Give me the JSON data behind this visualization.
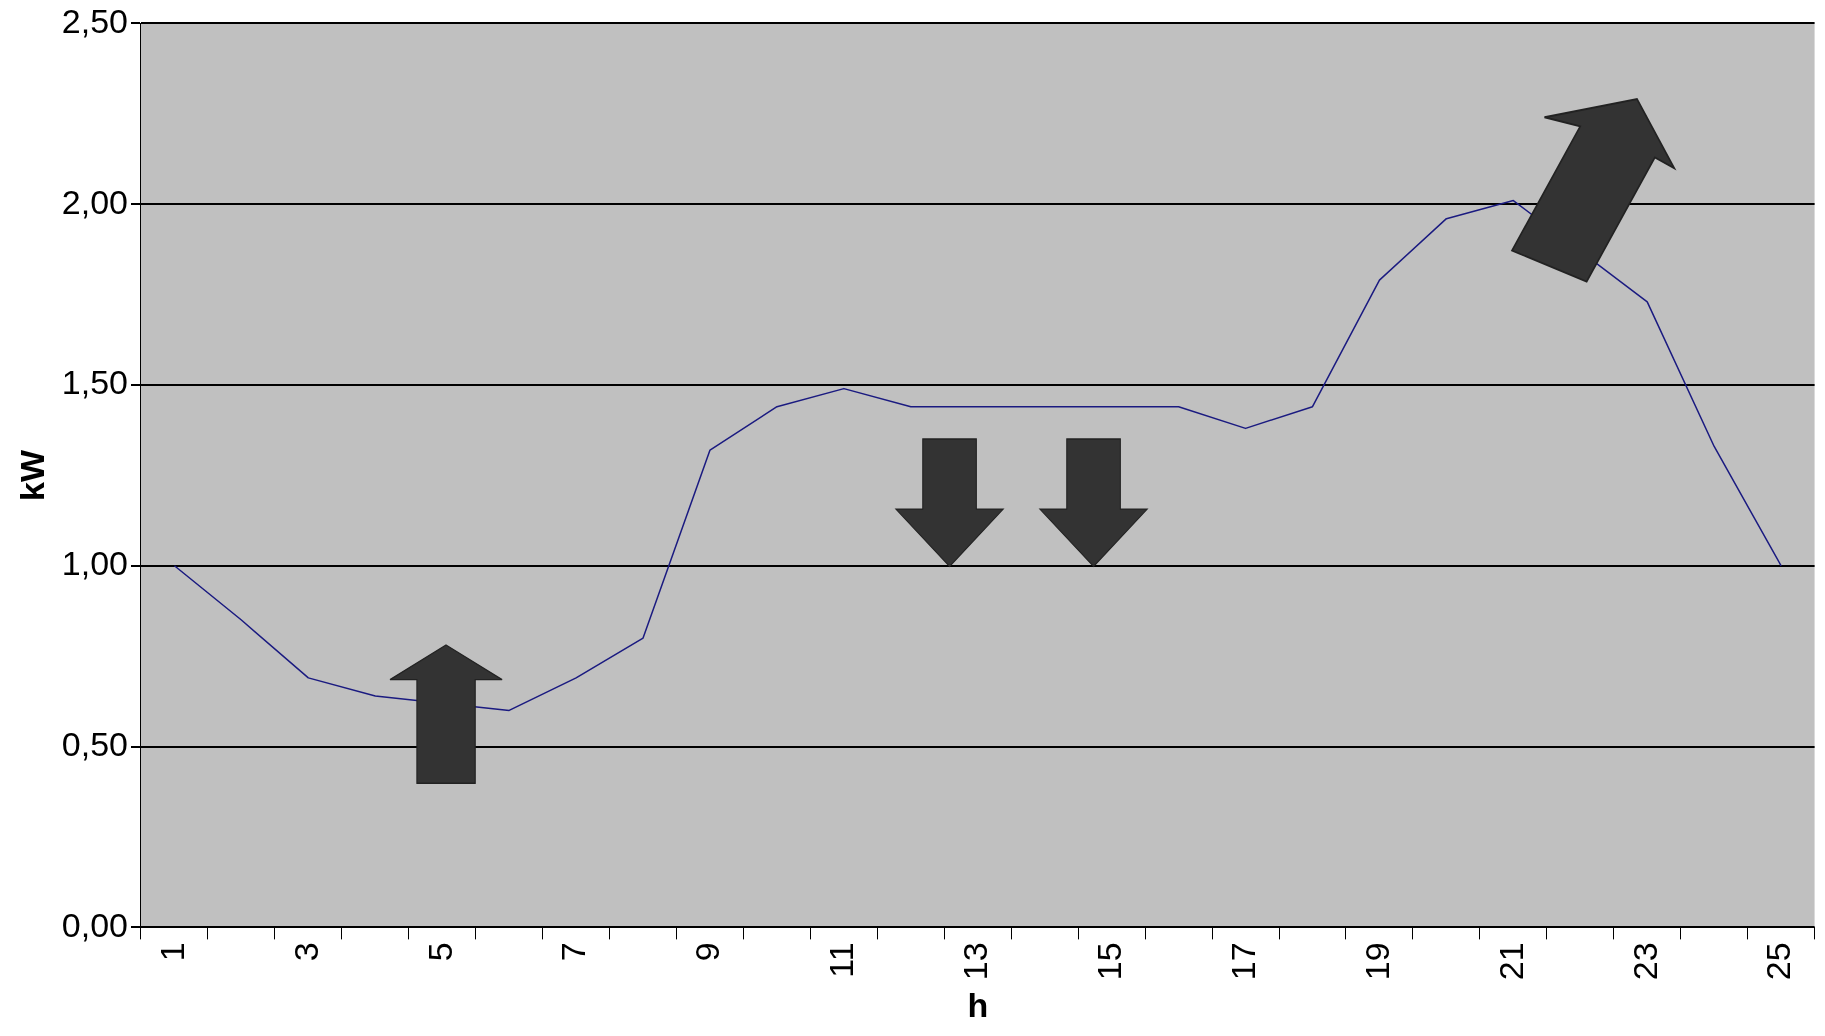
{
  "chart_data": {
    "type": "line",
    "xlabel": "h",
    "ylabel": "kW",
    "categories": [
      "1",
      null,
      "3",
      null,
      "5",
      null,
      "7",
      null,
      "9",
      null,
      "11",
      null,
      "13",
      null,
      "15",
      null,
      "17",
      null,
      "19",
      null,
      "21",
      null,
      "23",
      null,
      "25"
    ],
    "series": [
      {
        "color": "#1a1a80",
        "values": [
          1.0,
          0.85,
          0.69,
          0.64,
          null,
          0.6,
          0.69,
          0.8,
          1.32,
          1.44,
          1.49,
          1.44,
          1.44,
          1.44,
          1.44,
          1.44,
          1.38,
          1.44,
          1.79,
          1.96,
          2.01,
          null,
          1.73,
          1.33,
          1.0
        ]
      }
    ],
    "ylim": [
      0,
      2.5
    ],
    "yticks": [
      {
        "value": 0,
        "label": "0,00"
      },
      {
        "value": 0.5,
        "label": "0,50"
      },
      {
        "value": 1,
        "label": "1,00"
      },
      {
        "value": 1.5,
        "label": "1,50"
      },
      {
        "value": 2,
        "label": "2,00"
      },
      {
        "value": 2.5,
        "label": "2,50"
      }
    ],
    "grid": "y",
    "legend": false,
    "marker": "none",
    "line_style": "solid"
  }
}
